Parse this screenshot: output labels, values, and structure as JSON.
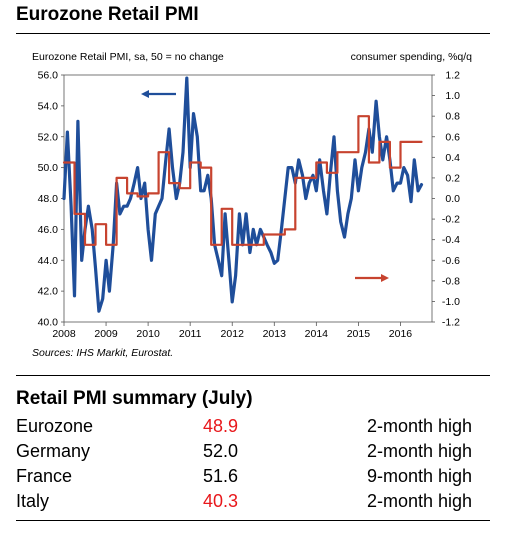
{
  "title": "Eurozone Retail PMI",
  "chart_data": {
    "type": "line",
    "left_axis_label": "Eurozone Retail PMI, sa, 50 = no change",
    "right_axis_label": "consumer spending, %q/q",
    "source": "Sources: IHS Markit, Eurostat.",
    "x_ticks": [
      "2008",
      "2009",
      "2010",
      "2011",
      "2012",
      "2013",
      "2014",
      "2015",
      "2016"
    ],
    "y_left_ticks": [
      "40.0",
      "42.0",
      "44.0",
      "46.0",
      "48.0",
      "50.0",
      "52.0",
      "54.0",
      "56.0"
    ],
    "y_right_ticks": [
      "-1.2",
      "-1.0",
      "-0.8",
      "-0.6",
      "-0.4",
      "-0.2",
      "0.0",
      "0.2",
      "0.4",
      "0.6",
      "0.8",
      "1.0",
      "1.2"
    ],
    "ylim_left": [
      40,
      56
    ],
    "ylim_right": [
      -1.2,
      1.2
    ],
    "xlim": [
      2008.0,
      2016.75
    ],
    "series": [
      {
        "axis": "left",
        "color": "#1f4e9a",
        "arrow": "left",
        "x": [
          2008.0,
          2008.08,
          2008.17,
          2008.25,
          2008.33,
          2008.42,
          2008.5,
          2008.58,
          2008.67,
          2008.75,
          2008.83,
          2008.92,
          2009.0,
          2009.08,
          2009.17,
          2009.25,
          2009.33,
          2009.42,
          2009.5,
          2009.58,
          2009.67,
          2009.75,
          2009.83,
          2009.92,
          2010.0,
          2010.08,
          2010.17,
          2010.25,
          2010.33,
          2010.42,
          2010.5,
          2010.58,
          2010.67,
          2010.75,
          2010.83,
          2010.92,
          2011.0,
          2011.08,
          2011.17,
          2011.25,
          2011.33,
          2011.42,
          2011.5,
          2011.58,
          2011.67,
          2011.75,
          2011.83,
          2011.92,
          2012.0,
          2012.08,
          2012.17,
          2012.25,
          2012.33,
          2012.42,
          2012.5,
          2012.58,
          2012.67,
          2012.75,
          2012.83,
          2012.92,
          2013.0,
          2013.08,
          2013.17,
          2013.25,
          2013.33,
          2013.42,
          2013.5,
          2013.58,
          2013.67,
          2013.75,
          2013.83,
          2013.92,
          2014.0,
          2014.08,
          2014.17,
          2014.25,
          2014.33,
          2014.42,
          2014.5,
          2014.58,
          2014.67,
          2014.75,
          2014.83,
          2014.92,
          2015.0,
          2015.08,
          2015.17,
          2015.25,
          2015.33,
          2015.42,
          2015.5,
          2015.58,
          2015.67,
          2015.75,
          2015.83,
          2015.92,
          2016.0,
          2016.08,
          2016.17,
          2016.25,
          2016.33,
          2016.42,
          2016.5
        ],
        "values": [
          48.0,
          52.3,
          47.5,
          41.7,
          53.0,
          44.0,
          46.0,
          47.5,
          46.0,
          43.5,
          40.7,
          41.5,
          44.0,
          42.0,
          45.0,
          49.0,
          47.0,
          47.5,
          47.5,
          48.0,
          49.0,
          50.0,
          48.0,
          49.0,
          46.0,
          44.0,
          47.0,
          47.5,
          48.0,
          50.5,
          52.5,
          50.0,
          48.0,
          49.0,
          51.0,
          55.8,
          50.0,
          53.5,
          52.0,
          48.5,
          48.5,
          49.5,
          48.0,
          45.0,
          44.0,
          43.0,
          47.0,
          44.0,
          41.3,
          43.0,
          47.0,
          45.0,
          47.0,
          44.5,
          46.0,
          45.0,
          46.0,
          45.5,
          45.0,
          44.5,
          43.8,
          44.0,
          46.0,
          48.0,
          50.0,
          50.0,
          49.0,
          50.5,
          49.5,
          48.0,
          49.0,
          49.5,
          48.5,
          50.5,
          48.5,
          47.0,
          49.5,
          52.0,
          48.5,
          46.5,
          45.5,
          47.0,
          48.0,
          50.5,
          48.5,
          50.0,
          51.0,
          52.5,
          51.0,
          54.3,
          52.0,
          50.5,
          52.0,
          50.5,
          48.5,
          49.0,
          49.0,
          50.0,
          49.5,
          47.8,
          50.5,
          48.5,
          48.9
        ]
      },
      {
        "axis": "right",
        "color": "#c7432f",
        "arrow": "right",
        "x": [
          2008.0,
          2008.25,
          2008.25,
          2008.5,
          2008.5,
          2008.75,
          2008.75,
          2009.0,
          2009.0,
          2009.25,
          2009.25,
          2009.5,
          2009.5,
          2009.75,
          2009.75,
          2010.0,
          2010.0,
          2010.25,
          2010.25,
          2010.5,
          2010.5,
          2010.75,
          2010.75,
          2011.0,
          2011.0,
          2011.25,
          2011.25,
          2011.5,
          2011.5,
          2011.75,
          2011.75,
          2012.0,
          2012.0,
          2012.25,
          2012.25,
          2012.5,
          2012.5,
          2012.75,
          2012.75,
          2013.0,
          2013.0,
          2013.25,
          2013.25,
          2013.5,
          2013.5,
          2013.75,
          2013.75,
          2014.0,
          2014.0,
          2014.25,
          2014.25,
          2014.5,
          2014.5,
          2014.75,
          2014.75,
          2015.0,
          2015.0,
          2015.25,
          2015.25,
          2015.5,
          2015.5,
          2015.75,
          2015.75,
          2016.0,
          2016.0,
          2016.25,
          2016.25,
          2016.5
        ],
        "values": [
          0.35,
          0.35,
          -0.15,
          -0.15,
          -0.45,
          -0.45,
          -0.25,
          -0.25,
          -0.45,
          -0.45,
          0.2,
          0.2,
          0.05,
          0.05,
          0.02,
          0.02,
          0.05,
          0.05,
          0.45,
          0.45,
          0.15,
          0.15,
          0.1,
          0.1,
          0.35,
          0.35,
          0.3,
          0.3,
          -0.45,
          -0.45,
          -0.1,
          -0.1,
          -0.45,
          -0.45,
          -0.45,
          -0.45,
          -0.45,
          -0.45,
          -0.35,
          -0.35,
          -0.35,
          -0.35,
          -0.3,
          -0.3,
          0.2,
          0.2,
          0.2,
          0.2,
          0.35,
          0.35,
          0.25,
          0.25,
          0.45,
          0.45,
          0.45,
          0.45,
          0.8,
          0.8,
          0.35,
          0.35,
          0.55,
          0.55,
          0.3,
          0.3,
          0.55,
          0.55,
          0.55,
          0.55
        ]
      }
    ]
  },
  "summary": {
    "title": "Retail PMI summary (July)",
    "rows": [
      {
        "country": "Eurozone",
        "value": "48.9",
        "note": "2-month high",
        "value_red": true
      },
      {
        "country": "Germany",
        "value": "52.0",
        "note": "2-month high",
        "value_red": false
      },
      {
        "country": "France",
        "value": "51.6",
        "note": "9-month high",
        "value_red": false
      },
      {
        "country": "Italy",
        "value": "40.3",
        "note": "2-month high",
        "value_red": true
      }
    ]
  }
}
